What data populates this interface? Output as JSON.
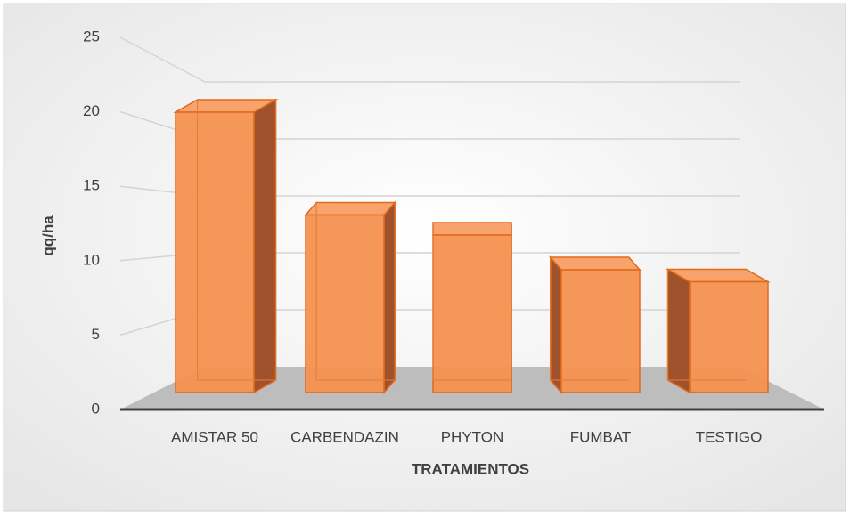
{
  "chart_data": {
    "type": "bar3d",
    "categories": [
      "AMISTAR 50",
      "CARBENDAZIN",
      "PHYTON",
      "FUMBAT",
      "TESTIGO"
    ],
    "values": [
      21,
      13.3,
      11.8,
      9.2,
      8.3
    ],
    "color": "#f4914f",
    "y_label": "qq/ha",
    "x_label": "TRATAMIENTOS",
    "ylim": [
      0,
      25
    ],
    "yticks": [
      0,
      5,
      10,
      15,
      20,
      25
    ],
    "grid": true
  }
}
